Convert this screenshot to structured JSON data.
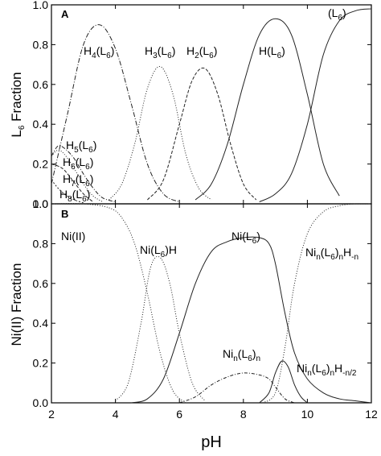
{
  "chart_data": [
    {
      "panel": "A",
      "type": "line",
      "ylabel_main": "L",
      "ylabel_sub": "6",
      "ylabel_rest": " Fraction",
      "xlim": [
        2,
        12
      ],
      "ylim": [
        0,
        1.0
      ],
      "yticks": [
        "0.0",
        "0.2",
        "0.4",
        "0.6",
        "0.8",
        "1.0"
      ],
      "grid": false,
      "series": [
        {
          "name": "H8(L6)",
          "x": [
            2.0,
            2.2,
            2.4,
            2.6,
            2.8,
            3.0
          ],
          "y": [
            0.12,
            0.08,
            0.05,
            0.03,
            0.015,
            0.005
          ]
        },
        {
          "name": "H7(L6)",
          "x": [
            2.0,
            2.2,
            2.4,
            2.7,
            3.0,
            3.3
          ],
          "y": [
            0.2,
            0.19,
            0.17,
            0.11,
            0.05,
            0.01
          ]
        },
        {
          "name": "H6(L6)",
          "x": [
            2.0,
            2.2,
            2.4,
            2.7,
            3.0,
            3.3,
            3.6
          ],
          "y": [
            0.24,
            0.27,
            0.25,
            0.18,
            0.1,
            0.04,
            0.01
          ]
        },
        {
          "name": "H5(L6)",
          "x": [
            2.0,
            2.2,
            2.4,
            2.7,
            3.0,
            3.3,
            3.6,
            4.0
          ],
          "y": [
            0.24,
            0.29,
            0.28,
            0.23,
            0.15,
            0.08,
            0.03,
            0.01
          ]
        },
        {
          "name": "H4(L6)",
          "x": [
            2.0,
            2.5,
            3.0,
            3.5,
            4.0,
            4.5,
            5.0,
            5.5,
            6.0
          ],
          "y": [
            0.1,
            0.45,
            0.8,
            0.9,
            0.78,
            0.5,
            0.2,
            0.05,
            0.01
          ]
        },
        {
          "name": "H3(L6)",
          "x": [
            3.8,
            4.2,
            4.6,
            5.0,
            5.4,
            5.8,
            6.2,
            6.6,
            7.0
          ],
          "y": [
            0.02,
            0.1,
            0.3,
            0.58,
            0.69,
            0.55,
            0.25,
            0.08,
            0.02
          ]
        },
        {
          "name": "H2(L6)",
          "x": [
            5.0,
            5.5,
            6.0,
            6.4,
            6.8,
            7.2,
            7.6,
            8.0,
            8.4
          ],
          "y": [
            0.02,
            0.12,
            0.4,
            0.62,
            0.68,
            0.55,
            0.3,
            0.1,
            0.02
          ]
        },
        {
          "name": "H(L6)",
          "x": [
            6.5,
            7.0,
            7.5,
            8.0,
            8.5,
            9.0,
            9.5,
            10.0,
            10.5,
            11.0
          ],
          "y": [
            0.02,
            0.1,
            0.3,
            0.6,
            0.85,
            0.93,
            0.85,
            0.55,
            0.2,
            0.04
          ]
        },
        {
          "name": "(L6)",
          "x": [
            8.5,
            9.0,
            9.5,
            10.0,
            10.5,
            11.0,
            11.5,
            12.0
          ],
          "y": [
            0.01,
            0.05,
            0.15,
            0.4,
            0.75,
            0.92,
            0.97,
            0.98
          ]
        }
      ],
      "labels": [
        {
          "main": "H",
          "sub1": "4",
          "mid": "(L",
          "sub2": "6",
          "end": ")"
        },
        {
          "main": "H",
          "sub1": "3",
          "mid": "(L",
          "sub2": "6",
          "end": ")"
        },
        {
          "main": "H",
          "sub1": "2",
          "mid": "(L",
          "sub2": "6",
          "end": ")"
        },
        {
          "main": "H(L",
          "sub1": "",
          "mid": "",
          "sub2": "6",
          "end": ")"
        },
        {
          "main": "(L",
          "sub1": "",
          "mid": "",
          "sub2": "6",
          "end": ")"
        },
        {
          "main": "H",
          "sub1": "5",
          "mid": "(L",
          "sub2": "6",
          "end": ")"
        },
        {
          "main": "H",
          "sub1": "6",
          "mid": "(L",
          "sub2": "6",
          "end": ")"
        },
        {
          "main": "H",
          "sub1": "7",
          "mid": "(L",
          "sub2": "6",
          "end": ")"
        },
        {
          "main": "H",
          "sub1": "8",
          "mid": "(L",
          "sub2": "6",
          "end": ")"
        }
      ]
    },
    {
      "panel": "B",
      "type": "line",
      "ylabel": "Ni(II) Fraction",
      "xlabel": "pH",
      "xlim": [
        2,
        12
      ],
      "ylim": [
        0,
        1.0
      ],
      "xticks": [
        "2",
        "4",
        "6",
        "8",
        "10",
        "12"
      ],
      "yticks": [
        "0.0",
        "0.2",
        "0.4",
        "0.6",
        "0.8",
        "1.0"
      ],
      "grid": false,
      "series": [
        {
          "name": "Ni(II)",
          "x": [
            2.0,
            3.0,
            3.8,
            4.2,
            4.6,
            5.0,
            5.4,
            5.8,
            6.2
          ],
          "y": [
            1.0,
            1.0,
            0.98,
            0.93,
            0.8,
            0.55,
            0.25,
            0.06,
            0.0
          ]
        },
        {
          "name": "Ni(L6)H",
          "x": [
            4.0,
            4.4,
            4.8,
            5.1,
            5.4,
            5.7,
            6.0,
            6.4,
            6.8
          ],
          "y": [
            0.01,
            0.1,
            0.4,
            0.68,
            0.73,
            0.6,
            0.35,
            0.1,
            0.01
          ]
        },
        {
          "name": "Ni(L6)",
          "x": [
            4.5,
            5.0,
            5.5,
            6.0,
            6.5,
            7.0,
            7.5,
            8.0,
            8.5,
            8.8,
            9.0,
            9.3,
            9.6,
            10.0,
            10.5,
            11.0,
            11.5,
            12.0
          ],
          "y": [
            0.0,
            0.02,
            0.12,
            0.35,
            0.6,
            0.76,
            0.81,
            0.83,
            0.83,
            0.8,
            0.7,
            0.45,
            0.25,
            0.12,
            0.05,
            0.02,
            0.01,
            0.0
          ]
        },
        {
          "name": "Nin(L6)n",
          "x": [
            6.0,
            6.5,
            7.0,
            7.5,
            8.0,
            8.5,
            8.8,
            9.0,
            9.3,
            9.6
          ],
          "y": [
            0.0,
            0.03,
            0.09,
            0.13,
            0.15,
            0.14,
            0.12,
            0.08,
            0.02,
            0.0
          ]
        },
        {
          "name": "Nin(L6)nH-n/2",
          "x": [
            8.5,
            8.8,
            9.0,
            9.2,
            9.4,
            9.6,
            9.8,
            10.0
          ],
          "y": [
            0.0,
            0.05,
            0.15,
            0.21,
            0.18,
            0.09,
            0.03,
            0.0
          ]
        },
        {
          "name": "Nin(L6)nH-n",
          "x": [
            8.6,
            9.0,
            9.3,
            9.6,
            10.0,
            10.5,
            11.0,
            11.5,
            12.0
          ],
          "y": [
            0.0,
            0.05,
            0.28,
            0.6,
            0.85,
            0.96,
            0.99,
            1.0,
            1.0
          ]
        }
      ],
      "labels": [
        {
          "text": "Ni(II)"
        },
        {
          "main": "Ni(L",
          "sub": "6",
          "end": ")H"
        },
        {
          "main": "Ni(L",
          "sub": "6",
          "end": ")"
        },
        {
          "main": "Ni",
          "sub1": "n",
          "mid": "(L",
          "sub2": "6",
          "mid2": ")",
          "sub3": "n",
          "mid3": "H",
          "sub4": "-n"
        },
        {
          "main": "Ni",
          "sub1": "n",
          "mid": "(L",
          "sub2": "6",
          "mid2": ")",
          "sub3": "n"
        },
        {
          "main": "Ni",
          "sub1": "n",
          "mid": "(L",
          "sub2": "6",
          "mid2": ")",
          "sub3": "n",
          "mid3": "H",
          "sub4": "-n/2"
        }
      ]
    }
  ]
}
